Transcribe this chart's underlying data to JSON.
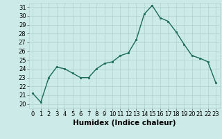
{
  "x": [
    0,
    1,
    2,
    3,
    4,
    5,
    6,
    7,
    8,
    9,
    10,
    11,
    12,
    13,
    14,
    15,
    16,
    17,
    18,
    19,
    20,
    21,
    22,
    23
  ],
  "y": [
    21.2,
    20.2,
    23.0,
    24.2,
    24.0,
    23.5,
    23.0,
    23.0,
    24.0,
    24.6,
    24.8,
    25.5,
    25.8,
    27.3,
    30.2,
    31.2,
    29.8,
    29.4,
    28.2,
    26.8,
    25.5,
    25.2,
    24.8,
    22.4
  ],
  "line_color": "#1a6b5a",
  "marker": "s",
  "markersize": 2,
  "linewidth": 1.0,
  "xlabel": "Humidex (Indice chaleur)",
  "bg_color": "#cceae7",
  "grid_color": "#b0d4d0",
  "xlim": [
    -0.5,
    23.5
  ],
  "ylim": [
    19.5,
    31.5
  ],
  "yticks": [
    20,
    21,
    22,
    23,
    24,
    25,
    26,
    27,
    28,
    29,
    30,
    31
  ],
  "xticks": [
    0,
    1,
    2,
    3,
    4,
    5,
    6,
    7,
    8,
    9,
    10,
    11,
    12,
    13,
    14,
    15,
    16,
    17,
    18,
    19,
    20,
    21,
    22,
    23
  ],
  "tick_fontsize": 6,
  "xlabel_fontsize": 7.5,
  "xlabel_fontweight": "bold"
}
